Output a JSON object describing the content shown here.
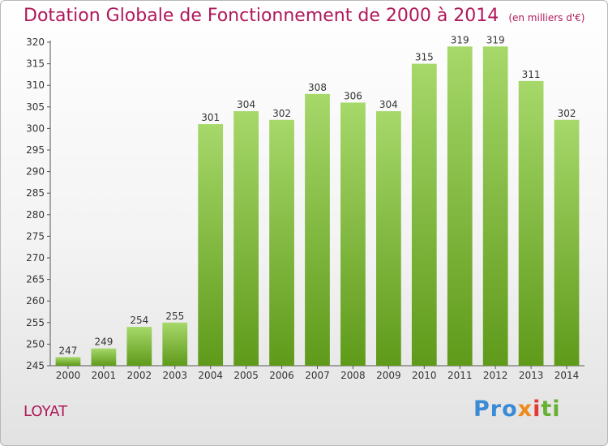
{
  "title": "Dotation Globale de Fonctionnement de 2000 à 2014",
  "subtitle": "(en milliers d'€)",
  "commune": "LOYAT",
  "logo": {
    "part1": "Pro",
    "part2": "x",
    "part3": "i",
    "part4": "ti"
  },
  "colors": {
    "bar_top": "#a6d86a",
    "bar_bottom": "#5f9a1a",
    "title": "#b0185a"
  },
  "chart_data": {
    "type": "bar",
    "title": "Dotation Globale de Fonctionnement de 2000 à 2014",
    "subtitle": "(en milliers d'€)",
    "xlabel": "",
    "ylabel": "",
    "categories": [
      "2000",
      "2001",
      "2002",
      "2003",
      "2004",
      "2005",
      "2006",
      "2007",
      "2008",
      "2009",
      "2010",
      "2011",
      "2012",
      "2013",
      "2014"
    ],
    "values": [
      247,
      249,
      254,
      255,
      301,
      304,
      302,
      308,
      306,
      304,
      315,
      319,
      319,
      311,
      302
    ],
    "ylim": [
      245,
      320
    ],
    "yticks": [
      245,
      250,
      255,
      260,
      265,
      270,
      275,
      280,
      285,
      290,
      295,
      300,
      305,
      310,
      315,
      320
    ],
    "grid": false,
    "legend": "none"
  }
}
